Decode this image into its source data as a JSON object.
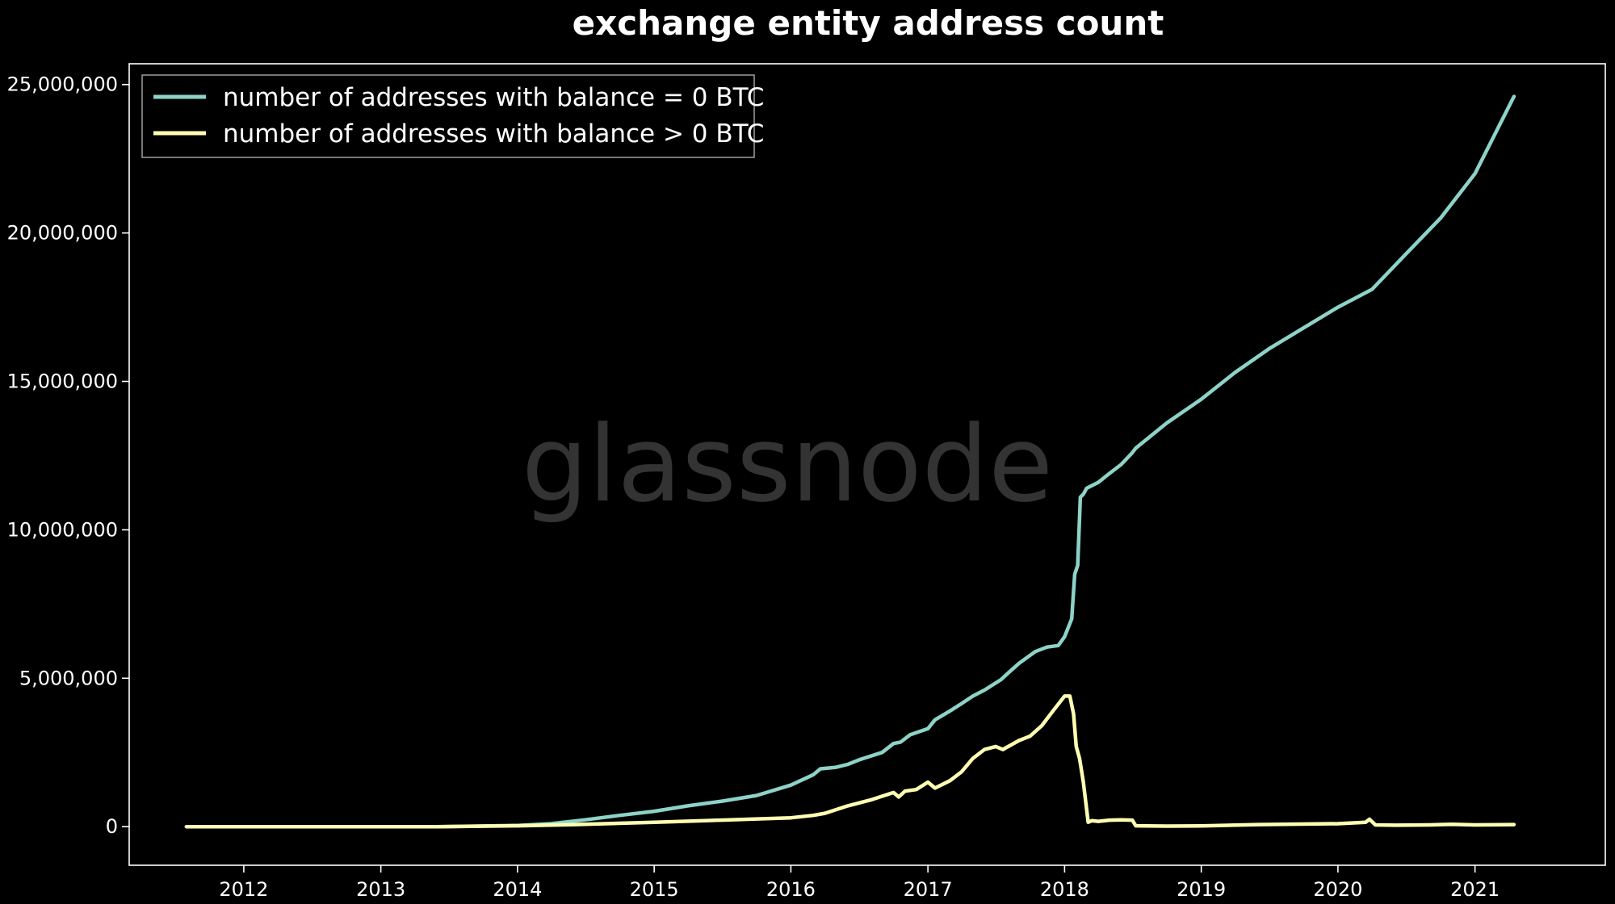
{
  "chart_data": {
    "type": "line",
    "title": "exchange entity address count",
    "watermark": "glassnode",
    "xlabel": "",
    "ylabel": "",
    "xlim": [
      "2011-03-01",
      "2021-12-15"
    ],
    "ylim": [
      -1300000,
      25700000
    ],
    "xticks": [
      "2012",
      "2013",
      "2014",
      "2015",
      "2016",
      "2017",
      "2018",
      "2019",
      "2020",
      "2021"
    ],
    "yticks": [
      0,
      5000000,
      10000000,
      15000000,
      20000000,
      25000000
    ],
    "ytick_labels": [
      "0",
      "5,000,000",
      "10,000,000",
      "15,000,000",
      "20,000,000",
      "25,000,000"
    ],
    "legend_position": "upper-left",
    "background": "#000000",
    "series": [
      {
        "name": "number of addresses with balance = 0 BTC",
        "color": "#8dd3c7",
        "x": [
          "2011-08-01",
          "2012-06-01",
          "2013-06-01",
          "2014-01-01",
          "2014-04-01",
          "2014-07-01",
          "2014-10-01",
          "2015-01-01",
          "2015-04-01",
          "2015-07-01",
          "2015-10-01",
          "2016-01-01",
          "2016-03-01",
          "2016-03-20",
          "2016-05-01",
          "2016-06-01",
          "2016-07-01",
          "2016-09-01",
          "2016-10-01",
          "2016-10-20",
          "2016-11-15",
          "2017-01-01",
          "2017-01-20",
          "2017-03-01",
          "2017-04-01",
          "2017-05-01",
          "2017-06-01",
          "2017-07-15",
          "2017-08-01",
          "2017-09-01",
          "2017-10-15",
          "2017-11-15",
          "2017-12-15",
          "2018-01-01",
          "2018-01-20",
          "2018-01-28",
          "2018-02-05",
          "2018-02-12",
          "2018-02-20",
          "2018-03-01",
          "2018-04-01",
          "2018-05-01",
          "2018-06-01",
          "2018-07-01",
          "2018-07-10",
          "2018-10-01",
          "2019-01-01",
          "2019-04-01",
          "2019-07-01",
          "2019-10-01",
          "2020-01-01",
          "2020-04-01",
          "2020-07-01",
          "2020-10-01",
          "2021-01-01",
          "2021-04-15"
        ],
        "y": [
          0,
          0,
          0,
          40000,
          100000,
          230000,
          380000,
          520000,
          700000,
          860000,
          1050000,
          1400000,
          1750000,
          1950000,
          2000000,
          2100000,
          2250000,
          2500000,
          2800000,
          2850000,
          3100000,
          3300000,
          3600000,
          3900000,
          4150000,
          4400000,
          4600000,
          4950000,
          5150000,
          5500000,
          5900000,
          6050000,
          6100000,
          6400000,
          7000000,
          8500000,
          8800000,
          11100000,
          11200000,
          11400000,
          11600000,
          11900000,
          12200000,
          12600000,
          12750000,
          13600000,
          14400000,
          15300000,
          16100000,
          16800000,
          17500000,
          18100000,
          19300000,
          20500000,
          22000000,
          24600000
        ]
      },
      {
        "name": "number of addresses with balance > 0 BTC",
        "color": "#ffffb3",
        "x": [
          "2011-08-01",
          "2012-06-01",
          "2013-06-01",
          "2014-01-01",
          "2014-06-01",
          "2015-01-01",
          "2015-06-01",
          "2016-01-01",
          "2016-03-01",
          "2016-04-01",
          "2016-06-01",
          "2016-08-01",
          "2016-10-01",
          "2016-10-15",
          "2016-11-01",
          "2016-12-01",
          "2017-01-01",
          "2017-01-20",
          "2017-03-01",
          "2017-04-01",
          "2017-05-01",
          "2017-06-01",
          "2017-07-01",
          "2017-07-20",
          "2017-09-01",
          "2017-10-01",
          "2017-11-01",
          "2017-12-01",
          "2018-01-01",
          "2018-01-15",
          "2018-01-25",
          "2018-02-01",
          "2018-02-10",
          "2018-02-20",
          "2018-03-05",
          "2018-03-15",
          "2018-04-01",
          "2018-05-01",
          "2018-06-01",
          "2018-07-01",
          "2018-07-10",
          "2018-10-01",
          "2019-01-01",
          "2019-06-01",
          "2020-01-01",
          "2020-03-15",
          "2020-03-25",
          "2020-04-10",
          "2020-06-01",
          "2020-09-01",
          "2020-11-01",
          "2021-01-01",
          "2021-04-15"
        ],
        "y": [
          0,
          0,
          0,
          30000,
          70000,
          150000,
          210000,
          300000,
          380000,
          450000,
          700000,
          900000,
          1150000,
          1000000,
          1200000,
          1250000,
          1500000,
          1300000,
          1550000,
          1850000,
          2300000,
          2600000,
          2700000,
          2600000,
          2900000,
          3050000,
          3400000,
          3900000,
          4400000,
          4400000,
          3800000,
          2700000,
          2300000,
          1500000,
          150000,
          200000,
          180000,
          220000,
          230000,
          220000,
          30000,
          20000,
          25000,
          70000,
          100000,
          150000,
          250000,
          60000,
          50000,
          60000,
          80000,
          60000,
          70000
        ]
      }
    ]
  }
}
